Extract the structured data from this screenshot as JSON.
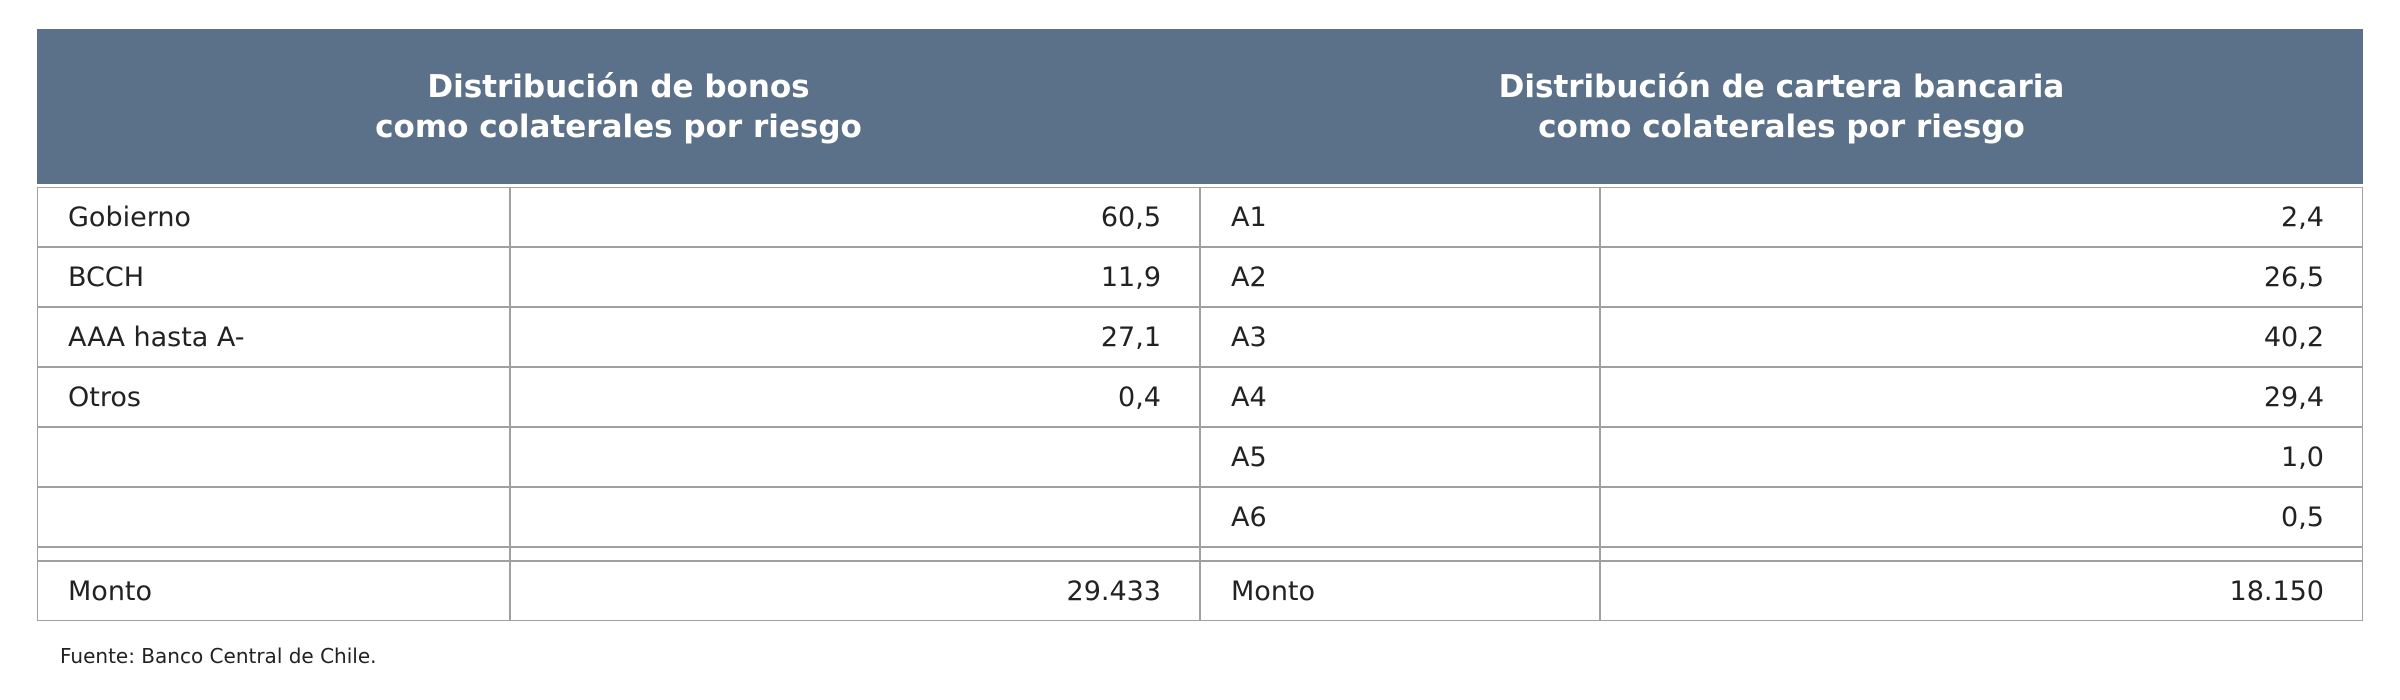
{
  "table": {
    "sections": [
      {
        "header": [
          "Distribución de bonos",
          "como colaterales por riesgo"
        ],
        "rows": [
          {
            "label": "Gobierno",
            "value": "60,5"
          },
          {
            "label": "BCCH",
            "value": "11,9"
          },
          {
            "label": "AAA hasta A-",
            "value": "27,1"
          },
          {
            "label": "Otros",
            "value": "0,4"
          }
        ],
        "total": {
          "label": "Monto",
          "value": "29.433"
        }
      },
      {
        "header": [
          "Distribución de cartera bancaria",
          "como colaterales por riesgo"
        ],
        "rows": [
          {
            "label": "A1",
            "value": "2,4"
          },
          {
            "label": "A2",
            "value": "26,5"
          },
          {
            "label": "A3",
            "value": "40,2"
          },
          {
            "label": "A4",
            "value": "29,4"
          },
          {
            "label": "A5",
            "value": "1,0"
          },
          {
            "label": "A6",
            "value": "0,5"
          }
        ],
        "total": {
          "label": "Monto",
          "value": "18.150"
        }
      }
    ]
  },
  "footer": {
    "source": "Fuente: Banco Central de Chile."
  }
}
